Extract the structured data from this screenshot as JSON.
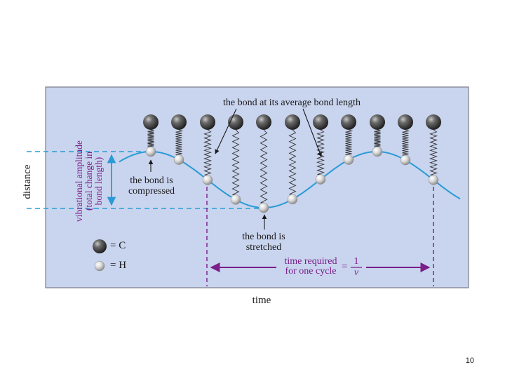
{
  "figure": {
    "label_average": "the bond at its average bond length",
    "label_compressed": [
      "the bond is",
      "compressed"
    ],
    "label_stretched": [
      "the bond is",
      "stretched"
    ],
    "label_amplitude": [
      "vibrational amplitude",
      "(total change in",
      "bond length)"
    ],
    "y_axis_label": "distance",
    "x_axis_label": "time",
    "cycle_label": [
      "time required",
      "for one cycle"
    ],
    "cycle_eq_sign": "=",
    "cycle_num": "1",
    "cycle_den": "ν",
    "legend": [
      {
        "symbol": "carbon-atom",
        "text": "= C"
      },
      {
        "symbol": "hydrogen-atom",
        "text": "= H"
      }
    ]
  },
  "colors": {
    "panel": "#c9d4ee",
    "wave": "#2a9bd6",
    "cycle_arrow": "#7a1f8a"
  },
  "page_number": "10"
}
